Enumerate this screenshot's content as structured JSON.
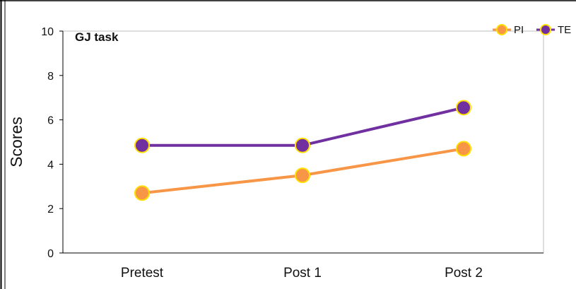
{
  "chart_data": {
    "type": "line",
    "title": "GJ task",
    "xlabel": "",
    "ylabel": "Scores",
    "categories": [
      "Pretest",
      "Post 1",
      "Post 2"
    ],
    "ylim": [
      0,
      10
    ],
    "yticks": [
      0,
      2,
      4,
      6,
      8,
      10
    ],
    "yticklabels": [
      "0",
      "2",
      "4",
      "6",
      "8",
      "10"
    ],
    "grid": false,
    "legend_position": "top-right",
    "series": [
      {
        "name": "PI",
        "values": [
          2.7,
          3.5,
          4.7
        ],
        "color": "#F79646",
        "marker_edge": "#FFE000"
      },
      {
        "name": "TE",
        "values": [
          4.85,
          4.85,
          6.55
        ],
        "color": "#7030A0",
        "marker_edge": "#FFE000"
      }
    ],
    "plot_border_color": "#BFBFBF"
  }
}
